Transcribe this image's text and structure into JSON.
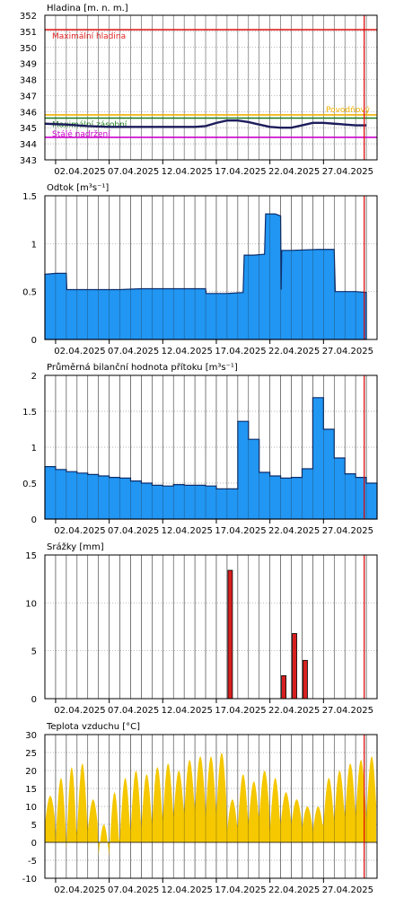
{
  "colors": {
    "background": "#ffffff",
    "grid_day": "#000000",
    "grid_minor": "#9a9a9a",
    "current_day_line": "#e00000",
    "level_line": "#1c1c5c",
    "flow_fill": "#2196f3",
    "flow_stroke": "#0c2e6e",
    "rain_fill": "#d62020",
    "temp_fill": "#f5c800",
    "max_level": "#e02020",
    "flood": "#f0b000",
    "reservoir": "#1a7a1a",
    "permanent": "#cc00cc"
  },
  "chart_data": [
    {
      "type": "line",
      "title": "Hladina [m. n. m.]",
      "ylim": [
        343,
        352
      ],
      "yticks": [
        "343",
        "344",
        "345",
        "346",
        "347",
        "348",
        "349",
        "350",
        "351",
        "352"
      ],
      "x_tick_labels": [
        "02.04.2025",
        "07.04.2025",
        "12.04.2025",
        "17.04.2025",
        "22.04.2025",
        "27.04.2025"
      ],
      "grid": true,
      "reference_lines": [
        {
          "label": "Maximální hladina",
          "y": 351.1,
          "color": "#e02020"
        },
        {
          "label": "Povodňový",
          "y": 345.8,
          "color": "#f0b000"
        },
        {
          "label": "Maximální zásobní",
          "y": 345.6,
          "color": "#1a7a1a"
        },
        {
          "label": "Stálé nadržení",
          "y": 344.4,
          "color": "#cc00cc"
        }
      ],
      "series": [
        {
          "x": [
            1,
            3,
            5,
            7,
            9,
            11,
            13,
            15,
            16,
            17,
            18,
            19,
            20,
            21,
            22,
            23,
            24,
            25,
            26,
            27,
            28,
            29,
            30,
            31
          ],
          "values": [
            345.25,
            345.2,
            345.1,
            345.05,
            345.05,
            345.05,
            345.05,
            345.05,
            345.1,
            345.3,
            345.45,
            345.45,
            345.35,
            345.2,
            345.05,
            345.0,
            345.0,
            345.15,
            345.3,
            345.3,
            345.25,
            345.2,
            345.15,
            345.15
          ]
        }
      ]
    },
    {
      "type": "area",
      "title": "Odtok [m³s⁻¹]",
      "ylim": [
        0,
        1.5
      ],
      "yticks": [
        "0",
        "0.5",
        "1",
        "1.5"
      ],
      "x_tick_labels": [
        "02.04.2025",
        "07.04.2025",
        "12.04.2025",
        "17.04.2025",
        "22.04.2025",
        "27.04.2025"
      ],
      "grid": true,
      "series": [
        {
          "x": [
            1.0,
            2.0,
            3.0,
            3.05,
            5.0,
            7.0,
            8.0,
            10.0,
            12.0,
            15.0,
            16.0,
            16.05,
            18.0,
            19.5,
            19.6,
            20.5,
            21.5,
            21.6,
            22.5,
            23.0,
            23.05,
            23.1,
            24.0,
            26.5,
            27.5,
            28.0,
            28.1,
            30.0,
            31.0
          ],
          "values": [
            0.68,
            0.69,
            0.69,
            0.52,
            0.52,
            0.52,
            0.52,
            0.53,
            0.53,
            0.53,
            0.53,
            0.48,
            0.48,
            0.49,
            0.88,
            0.88,
            0.89,
            1.31,
            1.31,
            1.29,
            0.52,
            0.93,
            0.93,
            0.94,
            0.94,
            0.94,
            0.5,
            0.5,
            0.49
          ]
        }
      ]
    },
    {
      "type": "area",
      "title": "Průměrná bilanční hodnota přítoku   [m³s⁻¹]",
      "ylim": [
        0,
        2
      ],
      "yticks": [
        "0",
        "0.5",
        "1",
        "1.5",
        "2"
      ],
      "x_tick_labels": [
        "02.04.2025",
        "07.04.2025",
        "12.04.2025",
        "17.04.2025",
        "22.04.2025",
        "27.04.2025"
      ],
      "grid": true,
      "series": [
        {
          "x": [
            1,
            2,
            3,
            4,
            5,
            6,
            7,
            8,
            9,
            10,
            11,
            12,
            13,
            14,
            15,
            16,
            17,
            18,
            19,
            20,
            21,
            22,
            23,
            24,
            25,
            26,
            27,
            28,
            29,
            30,
            31
          ],
          "values": [
            0.73,
            0.69,
            0.66,
            0.64,
            0.62,
            0.6,
            0.58,
            0.57,
            0.53,
            0.5,
            0.47,
            0.46,
            0.48,
            0.47,
            0.47,
            0.46,
            0.42,
            0.42,
            1.36,
            1.11,
            0.65,
            0.6,
            0.57,
            0.58,
            0.7,
            1.69,
            1.25,
            0.85,
            0.63,
            0.58,
            0.5
          ]
        }
      ]
    },
    {
      "type": "bar",
      "title": "Srážky [mm]",
      "ylim": [
        0,
        15
      ],
      "yticks": [
        "0",
        "5",
        "10",
        "15"
      ],
      "x_tick_labels": [
        "02.04.2025",
        "07.04.2025",
        "12.04.2025",
        "17.04.2025",
        "22.04.2025",
        "27.04.2025"
      ],
      "grid": true,
      "series": [
        {
          "x": [
            18,
            23,
            24,
            25
          ],
          "values": [
            13.4,
            2.4,
            6.8,
            4.0
          ]
        }
      ]
    },
    {
      "type": "area",
      "title": "Teplota vzduchu [°C]",
      "ylim": [
        -10,
        30
      ],
      "yticks": [
        "-10",
        "-5",
        "0",
        "5",
        "10",
        "15",
        "20",
        "25",
        "30"
      ],
      "x_tick_labels": [
        "02.04.2025",
        "07.04.2025",
        "12.04.2025",
        "17.04.2025",
        "22.04.2025",
        "27.04.2025"
      ],
      "grid": true,
      "series": [
        {
          "daily_min": [
            5,
            0,
            -2,
            2,
            3,
            -4,
            -4,
            1,
            3,
            4,
            5,
            6,
            7,
            8,
            9,
            7,
            8,
            3,
            4,
            5,
            7,
            3,
            5,
            5,
            4,
            3,
            5,
            6,
            7,
            7,
            6
          ],
          "daily_max": [
            13,
            18,
            21,
            22,
            12,
            5,
            14,
            18,
            20,
            19,
            21,
            22,
            20,
            23,
            24,
            24,
            25,
            12,
            19,
            17,
            20,
            18,
            14,
            12,
            10,
            10,
            18,
            20,
            22,
            23,
            24
          ]
        }
      ]
    }
  ]
}
